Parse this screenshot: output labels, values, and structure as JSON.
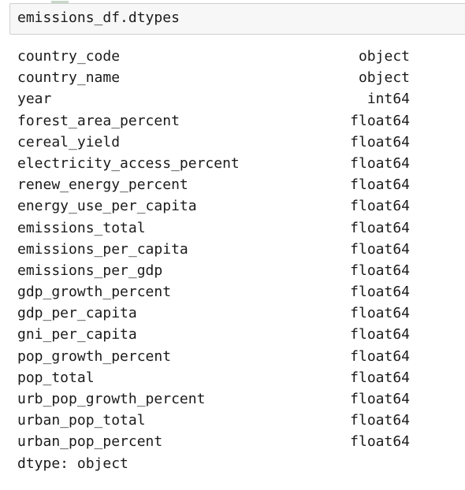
{
  "input": {
    "code": "emissions_df.dtypes"
  },
  "output": {
    "rows": [
      {
        "name": "country_code",
        "dtype": "object"
      },
      {
        "name": "country_name",
        "dtype": "object"
      },
      {
        "name": "year",
        "dtype": "int64"
      },
      {
        "name": "forest_area_percent",
        "dtype": "float64"
      },
      {
        "name": "cereal_yield",
        "dtype": "float64"
      },
      {
        "name": "electricity_access_percent",
        "dtype": "float64"
      },
      {
        "name": "renew_energy_percent",
        "dtype": "float64"
      },
      {
        "name": "energy_use_per_capita",
        "dtype": "float64"
      },
      {
        "name": "emissions_total",
        "dtype": "float64"
      },
      {
        "name": "emissions_per_capita",
        "dtype": "float64"
      },
      {
        "name": "emissions_per_gdp",
        "dtype": "float64"
      },
      {
        "name": "gdp_growth_percent",
        "dtype": "float64"
      },
      {
        "name": "gdp_per_capita",
        "dtype": "float64"
      },
      {
        "name": "gni_per_capita",
        "dtype": "float64"
      },
      {
        "name": "pop_growth_percent",
        "dtype": "float64"
      },
      {
        "name": "pop_total",
        "dtype": "float64"
      },
      {
        "name": "urb_pop_growth_percent",
        "dtype": "float64"
      },
      {
        "name": "urban_pop_total",
        "dtype": "float64"
      },
      {
        "name": "urban_pop_percent",
        "dtype": "float64"
      }
    ],
    "footer": "dtype: object"
  }
}
